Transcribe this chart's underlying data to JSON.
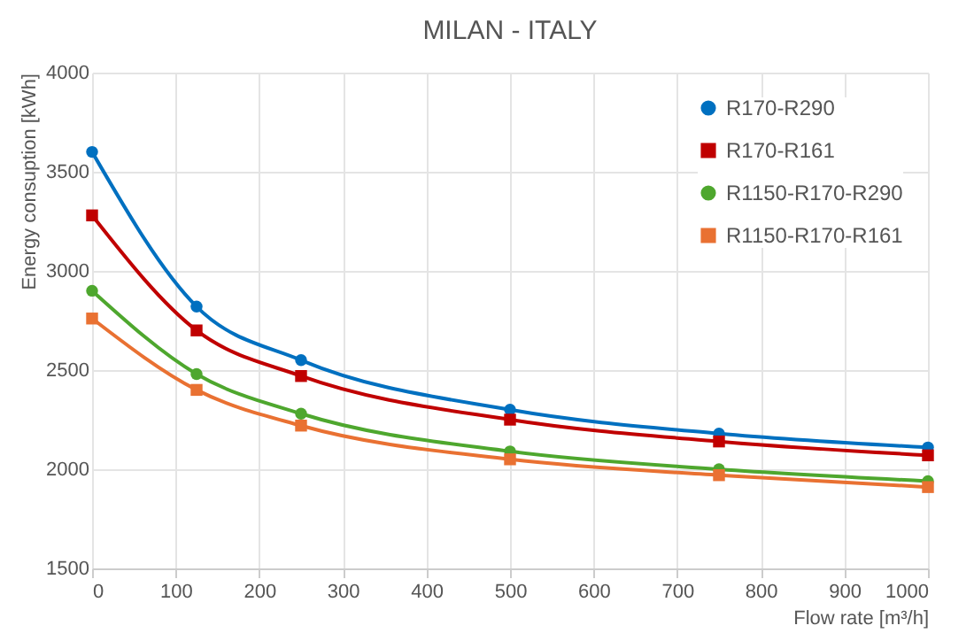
{
  "chart_data": {
    "type": "line",
    "title": "MILAN - ITALY",
    "xlabel": "Flow rate [m³/h]",
    "ylabel": "Energy consuption [kWh]",
    "x": [
      0,
      125,
      250,
      500,
      750,
      1000
    ],
    "series": [
      {
        "name": "R170-R290",
        "color": "#0070c0",
        "marker": "circle",
        "values": [
          3600,
          2820,
          2550,
          2300,
          2180,
          2110
        ]
      },
      {
        "name": "R170-R161",
        "color": "#c00000",
        "marker": "square",
        "values": [
          3280,
          2700,
          2470,
          2250,
          2140,
          2070
        ]
      },
      {
        "name": "R1150-R170-R290",
        "color": "#4ea72e",
        "marker": "circle",
        "values": [
          2900,
          2480,
          2280,
          2090,
          2000,
          1940
        ]
      },
      {
        "name": "R1150-R170-R161",
        "color": "#e97132",
        "marker": "square",
        "values": [
          2760,
          2400,
          2220,
          2050,
          1970,
          1910
        ]
      }
    ],
    "xlim": [
      0,
      1000
    ],
    "xticks": [
      0,
      100,
      200,
      300,
      400,
      500,
      600,
      700,
      800,
      900,
      1000
    ],
    "ylim": [
      1500,
      4000
    ],
    "yticks": [
      1500,
      2000,
      2500,
      3000,
      3500,
      4000
    ],
    "grid": true,
    "legend": "top right",
    "line_style": "solid"
  }
}
